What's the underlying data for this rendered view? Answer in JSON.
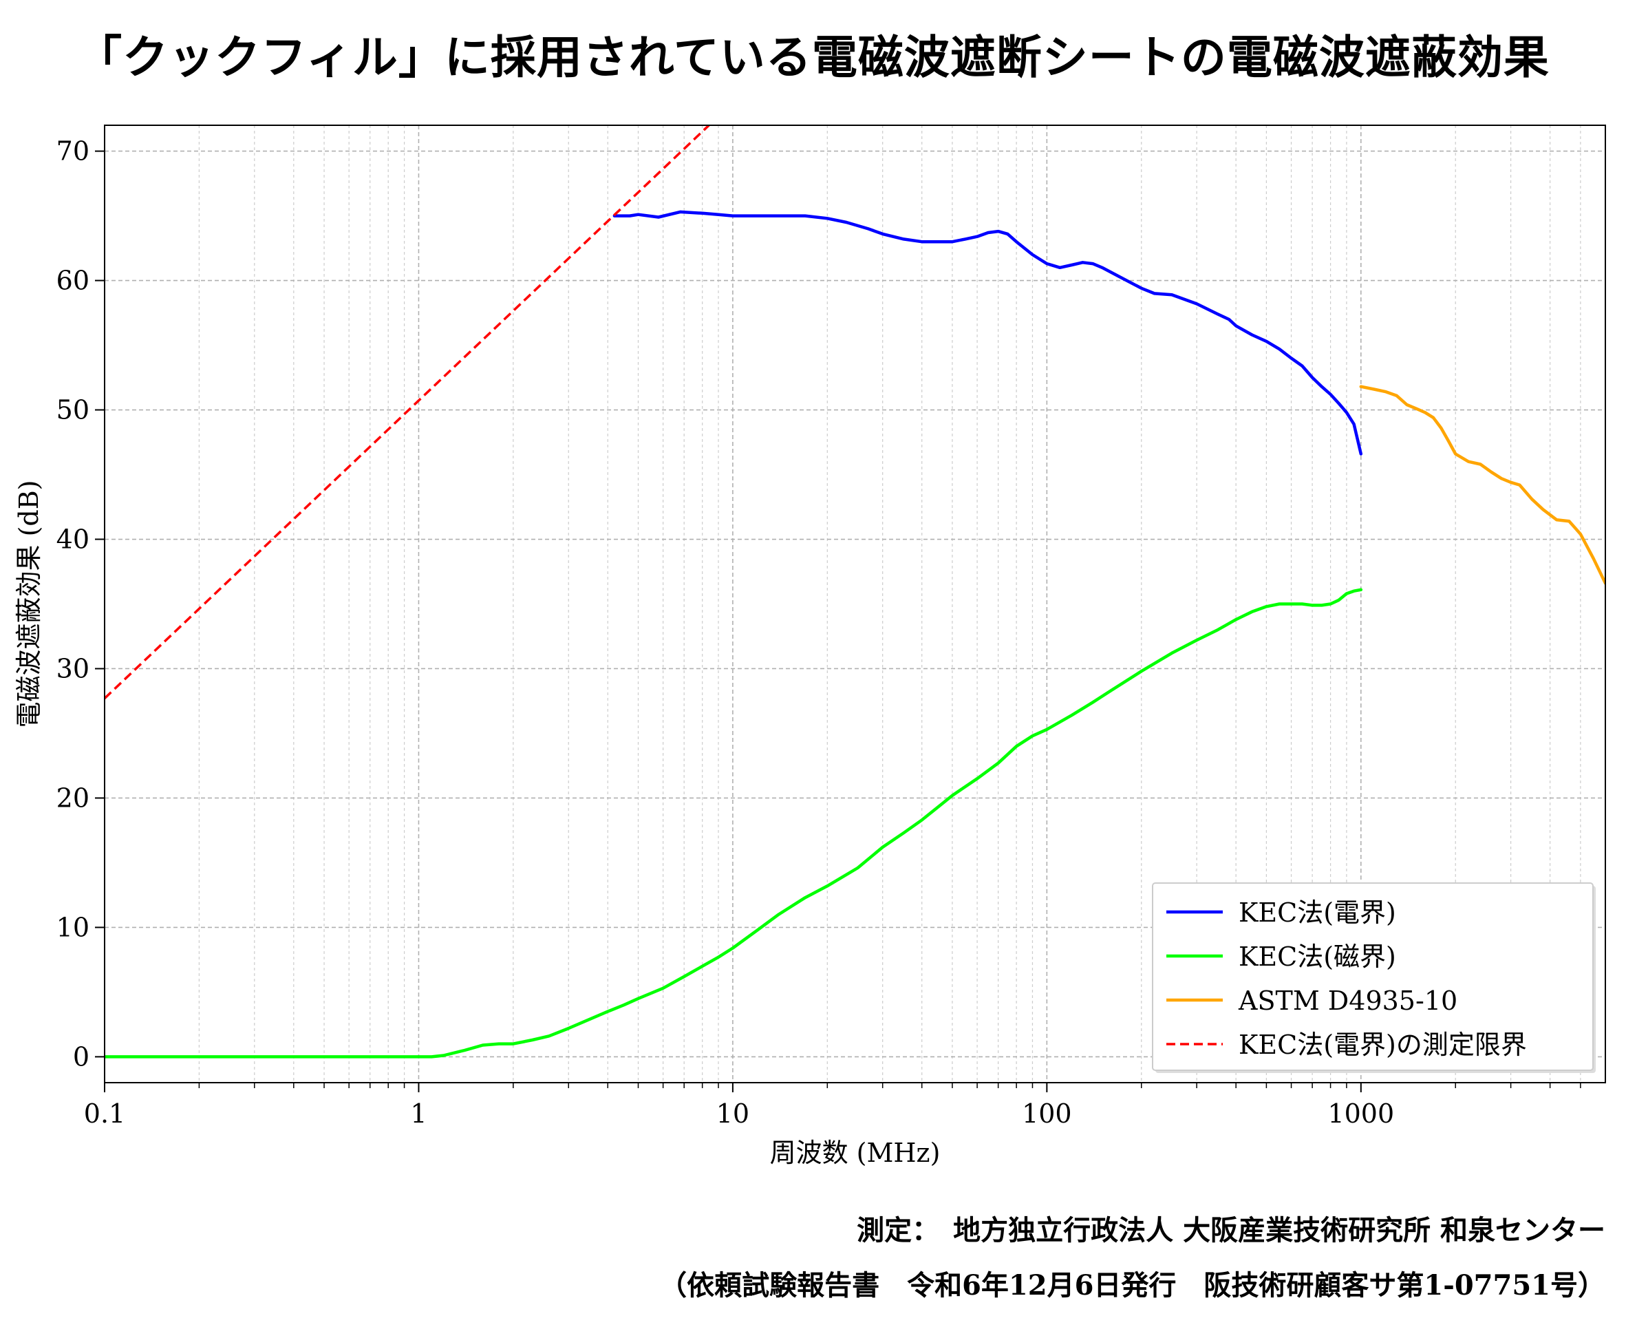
{
  "title": "「クックフィル」に採用されている電磁波遮断シートの電磁波遮蔽効果",
  "footer": {
    "line1": "測定：　地方独立行政法人 大阪産業技術研究所 和泉センター",
    "line2": "（依頼試験報告書　令和6年12月6日発行　阪技術研顧客サ第1-07751号）"
  },
  "colors": {
    "kec_e": "#0000ff",
    "kec_m": "#00ff00",
    "astm": "#ffa500",
    "limit": "#ff0000"
  },
  "chart_data": {
    "type": "line",
    "title": "「クックフィル」に採用されている電磁波遮断シートの電磁波遮蔽効果",
    "xlabel": "周波数 (MHz)",
    "ylabel": "電磁波遮蔽効果 (dB)",
    "xscale": "log",
    "xlim": [
      0.1,
      6000
    ],
    "ylim": [
      -2,
      72
    ],
    "xticks": [
      0.1,
      1,
      10,
      100,
      1000
    ],
    "xtick_labels": [
      "0.1",
      "1",
      "10",
      "100",
      "1000"
    ],
    "yticks": [
      0,
      10,
      20,
      30,
      40,
      50,
      60,
      70
    ],
    "ytick_labels": [
      "0",
      "10",
      "20",
      "30",
      "40",
      "50",
      "60",
      "70"
    ],
    "grid": true,
    "legend_position": "lower-right",
    "series": [
      {
        "name": "KEC法(電界)",
        "color": "#0000ff",
        "style": "solid",
        "points": [
          [
            4.2,
            65
          ],
          [
            4.7,
            65
          ],
          [
            5,
            65.1
          ],
          [
            5.8,
            64.9
          ],
          [
            6.8,
            65.3
          ],
          [
            8,
            65.2
          ],
          [
            9,
            65.1
          ],
          [
            10,
            65
          ],
          [
            11,
            65
          ],
          [
            13,
            65
          ],
          [
            15,
            65
          ],
          [
            17,
            65
          ],
          [
            20,
            64.8
          ],
          [
            23,
            64.5
          ],
          [
            27,
            64
          ],
          [
            30,
            63.6
          ],
          [
            35,
            63.2
          ],
          [
            40,
            63
          ],
          [
            45,
            63
          ],
          [
            50,
            63
          ],
          [
            55,
            63.2
          ],
          [
            60,
            63.4
          ],
          [
            65,
            63.7
          ],
          [
            70,
            63.8
          ],
          [
            75,
            63.6
          ],
          [
            80,
            63
          ],
          [
            90,
            62
          ],
          [
            100,
            61.3
          ],
          [
            110,
            61
          ],
          [
            120,
            61.2
          ],
          [
            130,
            61.4
          ],
          [
            140,
            61.3
          ],
          [
            150,
            61
          ],
          [
            170,
            60.3
          ],
          [
            200,
            59.4
          ],
          [
            220,
            59
          ],
          [
            250,
            58.9
          ],
          [
            300,
            58.2
          ],
          [
            350,
            57.4
          ],
          [
            380,
            57
          ],
          [
            400,
            56.5
          ],
          [
            450,
            55.8
          ],
          [
            500,
            55.3
          ],
          [
            550,
            54.7
          ],
          [
            600,
            54
          ],
          [
            650,
            53.4
          ],
          [
            700,
            52.5
          ],
          [
            750,
            51.8
          ],
          [
            800,
            51.2
          ],
          [
            850,
            50.5
          ],
          [
            900,
            49.8
          ],
          [
            950,
            48.9
          ],
          [
            1000,
            46.6
          ]
        ]
      },
      {
        "name": "KEC法(磁界)",
        "color": "#00ff00",
        "style": "solid",
        "points": [
          [
            0.1,
            0
          ],
          [
            0.15,
            0
          ],
          [
            0.2,
            0
          ],
          [
            0.3,
            0
          ],
          [
            0.5,
            0
          ],
          [
            0.7,
            0
          ],
          [
            1,
            0
          ],
          [
            1.1,
            0
          ],
          [
            1.2,
            0.1
          ],
          [
            1.4,
            0.5
          ],
          [
            1.6,
            0.9
          ],
          [
            1.8,
            1
          ],
          [
            2,
            1
          ],
          [
            2.3,
            1.3
          ],
          [
            2.6,
            1.6
          ],
          [
            3,
            2.2
          ],
          [
            3.5,
            2.9
          ],
          [
            4,
            3.5
          ],
          [
            4.5,
            4
          ],
          [
            5,
            4.5
          ],
          [
            6,
            5.3
          ],
          [
            7,
            6.2
          ],
          [
            8,
            7
          ],
          [
            9,
            7.7
          ],
          [
            10,
            8.4
          ],
          [
            12,
            9.8
          ],
          [
            14,
            11
          ],
          [
            17,
            12.3
          ],
          [
            20,
            13.2
          ],
          [
            25,
            14.6
          ],
          [
            30,
            16.2
          ],
          [
            35,
            17.3
          ],
          [
            40,
            18.3
          ],
          [
            45,
            19.3
          ],
          [
            50,
            20.2
          ],
          [
            60,
            21.5
          ],
          [
            70,
            22.7
          ],
          [
            80,
            24
          ],
          [
            90,
            24.8
          ],
          [
            100,
            25.3
          ],
          [
            120,
            26.4
          ],
          [
            140,
            27.4
          ],
          [
            160,
            28.3
          ],
          [
            200,
            29.8
          ],
          [
            250,
            31.2
          ],
          [
            300,
            32.2
          ],
          [
            350,
            33
          ],
          [
            400,
            33.8
          ],
          [
            450,
            34.4
          ],
          [
            500,
            34.8
          ],
          [
            550,
            35
          ],
          [
            600,
            35
          ],
          [
            650,
            35
          ],
          [
            700,
            34.9
          ],
          [
            750,
            34.9
          ],
          [
            800,
            35
          ],
          [
            850,
            35.3
          ],
          [
            900,
            35.8
          ],
          [
            950,
            36
          ],
          [
            1000,
            36.1
          ]
        ]
      },
      {
        "name": "ASTM D4935-10",
        "color": "#ffa500",
        "style": "solid",
        "points": [
          [
            1000,
            51.8
          ],
          [
            1100,
            51.6
          ],
          [
            1200,
            51.4
          ],
          [
            1300,
            51.1
          ],
          [
            1400,
            50.4
          ],
          [
            1500,
            50.1
          ],
          [
            1600,
            49.8
          ],
          [
            1700,
            49.4
          ],
          [
            1800,
            48.6
          ],
          [
            1900,
            47.6
          ],
          [
            2000,
            46.6
          ],
          [
            2200,
            46
          ],
          [
            2400,
            45.8
          ],
          [
            2600,
            45.2
          ],
          [
            2800,
            44.7
          ],
          [
            3000,
            44.4
          ],
          [
            3200,
            44.2
          ],
          [
            3500,
            43.1
          ],
          [
            3800,
            42.3
          ],
          [
            4200,
            41.5
          ],
          [
            4600,
            41.4
          ],
          [
            5000,
            40.4
          ],
          [
            5500,
            38.5
          ],
          [
            6000,
            36.6
          ]
        ]
      },
      {
        "name": "KEC法(電界)の測定限界",
        "color": "#ff0000",
        "style": "dashed",
        "points": [
          [
            0.1,
            27.7
          ],
          [
            8.4,
            72
          ]
        ]
      }
    ]
  }
}
